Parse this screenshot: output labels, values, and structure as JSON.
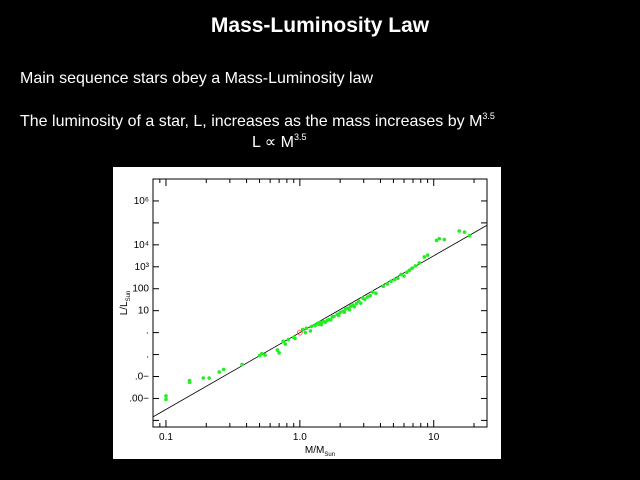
{
  "slide": {
    "title": "Mass-Luminosity Law",
    "line1": "Main sequence stars obey a Mass-Luminosity law",
    "line2_text": "The luminosity of a star, L, increases as the mass increases by M",
    "line2_exp": "3.5",
    "formula_text": "L ∝  M",
    "formula_exp": "3.5"
  },
  "chart_data": {
    "type": "scatter",
    "title": "",
    "xlabel_main": "M/M",
    "xlabel_sub": "Sun",
    "ylabel_main": "L/L",
    "ylabel_sub": "Sun",
    "xscale": "log",
    "yscale": "log",
    "xlim": [
      0.08,
      25
    ],
    "ylim": [
      5e-05,
      10000000
    ],
    "x_ticks": [
      {
        "value": 0.1,
        "label": "0.1"
      },
      {
        "value": 1,
        "label": "1.0"
      },
      {
        "value": 10,
        "label": "10"
      }
    ],
    "y_ticks": [
      {
        "value": 0.001,
        "label": ".00−"
      },
      {
        "value": 0.01,
        "label": ".0−"
      },
      {
        "value": 0.1,
        "label": "."
      },
      {
        "value": 1,
        "label": "·"
      },
      {
        "value": 10,
        "label": "10"
      },
      {
        "value": 100,
        "label": "100"
      },
      {
        "value": 1000,
        "label": "10³"
      },
      {
        "value": 10000,
        "label": "10⁴"
      },
      {
        "value": 1000000,
        "label": "10⁶"
      }
    ],
    "grid": false,
    "fit_line": {
      "type": "power law",
      "exponent": 3.5,
      "color": "#000000"
    },
    "point_color": "#22ee22",
    "sun_marker_color": "#ff5555",
    "sun": {
      "x": 1.0,
      "y": 1.0
    },
    "points": [
      {
        "x": 0.1,
        "y": 0.0013
      },
      {
        "x": 0.1,
        "y": 0.0009
      },
      {
        "x": 0.15,
        "y": 0.0055
      },
      {
        "x": 0.15,
        "y": 0.0065
      },
      {
        "x": 0.19,
        "y": 0.0085
      },
      {
        "x": 0.21,
        "y": 0.0085
      },
      {
        "x": 0.25,
        "y": 0.016
      },
      {
        "x": 0.27,
        "y": 0.021
      },
      {
        "x": 0.37,
        "y": 0.035
      },
      {
        "x": 0.5,
        "y": 0.09
      },
      {
        "x": 0.52,
        "y": 0.11
      },
      {
        "x": 0.55,
        "y": 0.095
      },
      {
        "x": 0.68,
        "y": 0.16
      },
      {
        "x": 0.7,
        "y": 0.12
      },
      {
        "x": 0.75,
        "y": 0.4
      },
      {
        "x": 0.78,
        "y": 0.3
      },
      {
        "x": 0.82,
        "y": 0.48
      },
      {
        "x": 0.9,
        "y": 0.6
      },
      {
        "x": 0.92,
        "y": 0.55
      },
      {
        "x": 1.05,
        "y": 1.4
      },
      {
        "x": 1.1,
        "y": 1.0
      },
      {
        "x": 1.12,
        "y": 1.6
      },
      {
        "x": 1.2,
        "y": 1.2
      },
      {
        "x": 1.22,
        "y": 1.9
      },
      {
        "x": 1.3,
        "y": 2.1
      },
      {
        "x": 1.35,
        "y": 2.6
      },
      {
        "x": 1.38,
        "y": 2.4
      },
      {
        "x": 1.42,
        "y": 2.9
      },
      {
        "x": 1.45,
        "y": 2.3
      },
      {
        "x": 1.5,
        "y": 3.2
      },
      {
        "x": 1.55,
        "y": 3.0
      },
      {
        "x": 1.6,
        "y": 3.6
      },
      {
        "x": 1.65,
        "y": 4.0
      },
      {
        "x": 1.7,
        "y": 3.8
      },
      {
        "x": 1.75,
        "y": 5.2
      },
      {
        "x": 1.8,
        "y": 5.5
      },
      {
        "x": 1.9,
        "y": 6.8
      },
      {
        "x": 1.95,
        "y": 6.0
      },
      {
        "x": 2.0,
        "y": 8.2
      },
      {
        "x": 2.1,
        "y": 9.5
      },
      {
        "x": 2.15,
        "y": 8.5
      },
      {
        "x": 2.2,
        "y": 12
      },
      {
        "x": 2.3,
        "y": 13
      },
      {
        "x": 2.35,
        "y": 11
      },
      {
        "x": 2.4,
        "y": 16
      },
      {
        "x": 2.5,
        "y": 18
      },
      {
        "x": 2.55,
        "y": 15
      },
      {
        "x": 2.65,
        "y": 21
      },
      {
        "x": 2.75,
        "y": 27
      },
      {
        "x": 2.85,
        "y": 22
      },
      {
        "x": 2.95,
        "y": 38
      },
      {
        "x": 3.05,
        "y": 33
      },
      {
        "x": 3.2,
        "y": 42
      },
      {
        "x": 3.35,
        "y": 48
      },
      {
        "x": 3.5,
        "y": 70
      },
      {
        "x": 3.7,
        "y": 62
      },
      {
        "x": 4.2,
        "y": 130
      },
      {
        "x": 4.5,
        "y": 165
      },
      {
        "x": 4.8,
        "y": 220
      },
      {
        "x": 5.1,
        "y": 260
      },
      {
        "x": 5.4,
        "y": 300
      },
      {
        "x": 5.7,
        "y": 450
      },
      {
        "x": 6.0,
        "y": 380
      },
      {
        "x": 6.3,
        "y": 560
      },
      {
        "x": 6.6,
        "y": 700
      },
      {
        "x": 6.9,
        "y": 860
      },
      {
        "x": 7.3,
        "y": 1100
      },
      {
        "x": 7.8,
        "y": 1500
      },
      {
        "x": 8.5,
        "y": 2800
      },
      {
        "x": 9.0,
        "y": 3400
      },
      {
        "x": 10.5,
        "y": 16000
      },
      {
        "x": 11.0,
        "y": 19000
      },
      {
        "x": 12.0,
        "y": 17500
      },
      {
        "x": 15.5,
        "y": 43000
      },
      {
        "x": 17.0,
        "y": 38000
      },
      {
        "x": 18.5,
        "y": 26000
      }
    ]
  }
}
